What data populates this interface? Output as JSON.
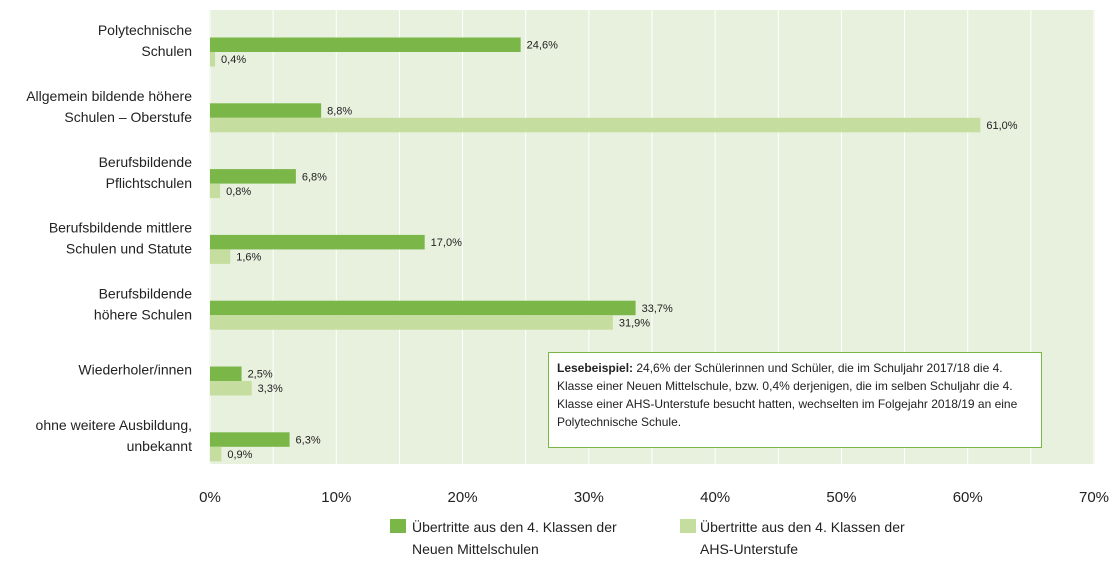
{
  "chart_data": {
    "type": "hbar",
    "categories": [
      [
        "Polytechnische",
        "Schulen"
      ],
      [
        "Allgemein bildende höhere",
        "Schulen – Oberstufe"
      ],
      [
        "Berufsbildende",
        "Pflichtschulen"
      ],
      [
        "Berufsbildende mittlere",
        "Schulen und Statute"
      ],
      [
        "Berufsbildende",
        "höhere Schulen"
      ],
      [
        "Wiederholer/innen"
      ],
      [
        "ohne weitere  Ausbildung,",
        "unbekannt"
      ]
    ],
    "series": [
      {
        "name": "Übertritte aus den 4. Klassen der Neuen Mittelschulen",
        "color": "#7ab648",
        "values": [
          24.6,
          8.8,
          6.8,
          17.0,
          33.7,
          2.5,
          6.3
        ],
        "value_labels": [
          "24,6%",
          "8,8%",
          "6,8%",
          "17,0%",
          "33,7%",
          "2,5%",
          "6,3%"
        ]
      },
      {
        "name": "Übertritte aus den 4. Klassen der AHS-Unterstufe",
        "color": "#c5dea0",
        "values": [
          0.4,
          61.0,
          0.8,
          1.6,
          31.9,
          3.3,
          0.9
        ],
        "value_labels": [
          "0,4%",
          "61,0%",
          "0,8%",
          "1,6%",
          "31,9%",
          "3,3%",
          "0,9%"
        ]
      }
    ],
    "xlim": [
      0,
      70
    ],
    "xticks": [
      {
        "value": 0,
        "label": "0%"
      },
      {
        "value": 10,
        "label": "10%"
      },
      {
        "value": 20,
        "label": "20%"
      },
      {
        "value": 30,
        "label": "30%"
      },
      {
        "value": 40,
        "label": "40%"
      },
      {
        "value": 50,
        "label": "50%"
      },
      {
        "value": 60,
        "label": "60%"
      },
      {
        "value": 70,
        "label": "70%"
      }
    ],
    "xminorticks": [
      5,
      15,
      25,
      35,
      45,
      55,
      65
    ],
    "grid": true,
    "annotation": {
      "label": "Lesebeispiel:",
      "text": "24,6% der Schülerinnen und Schüler, die im Schuljahr 2017/18 die 4. Klasse einer Neuen Mittelschule, bzw. 0,4% derjenigen, die im selben Schuljahr die 4. Klasse einer AHS-Unterstufe besucht hatten, wechselten im Folgejahr 2018/19 an eine Polytechnische Schule."
    }
  }
}
